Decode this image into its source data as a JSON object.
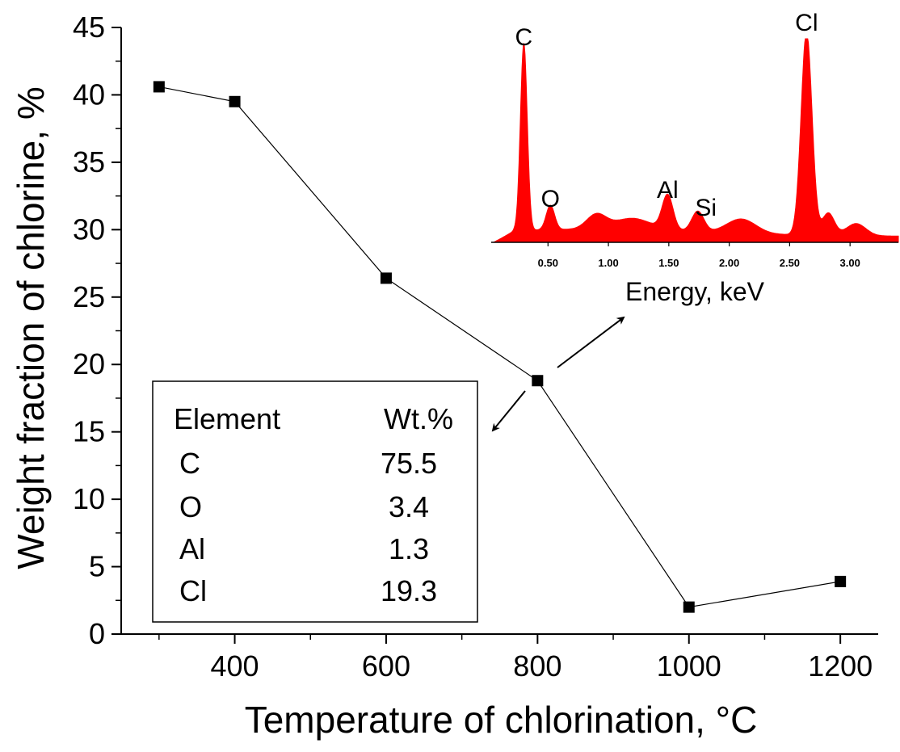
{
  "chart_data": [
    {
      "type": "line",
      "xlabel": "Temperature of chlorination, °C",
      "ylabel": "Weight fraction of chlorine, %",
      "xlim": [
        250,
        1250
      ],
      "ylim": [
        0,
        45
      ],
      "x_ticks": [
        400,
        600,
        800,
        1000,
        1200
      ],
      "y_ticks": [
        0,
        5,
        10,
        15,
        20,
        25,
        30,
        35,
        40,
        45
      ],
      "grid": false,
      "series": [
        {
          "marker": "square",
          "color": "#000000",
          "points": [
            {
              "x": 300,
              "y": 40.6
            },
            {
              "x": 400,
              "y": 39.5
            },
            {
              "x": 600,
              "y": 26.4
            },
            {
              "x": 800,
              "y": 18.8
            },
            {
              "x": 1000,
              "y": 2.0
            },
            {
              "x": 1200,
              "y": 3.9
            }
          ]
        }
      ]
    },
    {
      "type": "area",
      "xlabel": "Energy, keV",
      "x_ticks": [
        "0.50",
        "1.00",
        "1.50",
        "2.00",
        "2.50",
        "3.00"
      ],
      "xlim": [
        0.03,
        3.4
      ],
      "ylim": [
        0,
        100
      ],
      "color": "#ff0000",
      "peaks": [
        {
          "label": "C",
          "x": 0.3,
          "y": 92
        },
        {
          "label": "O",
          "x": 0.52,
          "y": 12
        },
        {
          "label": "Al",
          "x": 1.49,
          "y": 17
        },
        {
          "label": "Si",
          "x": 1.74,
          "y": 10
        },
        {
          "label": "Cl",
          "x": 2.64,
          "y": 100
        }
      ]
    }
  ],
  "composition_table": {
    "header": {
      "element": "Element",
      "value": "Wt.%"
    },
    "rows": [
      {
        "element": "C",
        "value": "75.5"
      },
      {
        "element": "O",
        "value": "3.4"
      },
      {
        "element": "Al",
        "value": "1.3"
      },
      {
        "element": "Cl",
        "value": "19.3"
      }
    ]
  }
}
